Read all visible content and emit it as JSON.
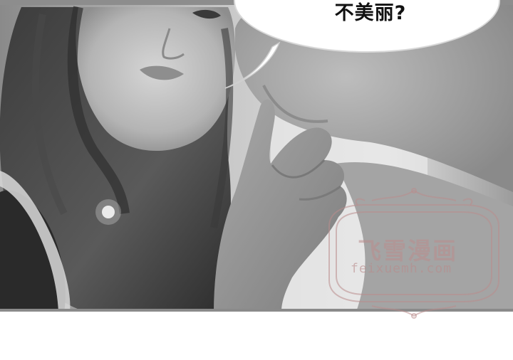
{
  "speech_bubble": {
    "text": "不美丽?"
  },
  "watermark": {
    "logo_text": "飞雪漫画",
    "site": "feixuemh.com",
    "color": "#b98c8c"
  },
  "panel": {
    "style": "grayscale",
    "subject": "girl-touching-chin"
  }
}
